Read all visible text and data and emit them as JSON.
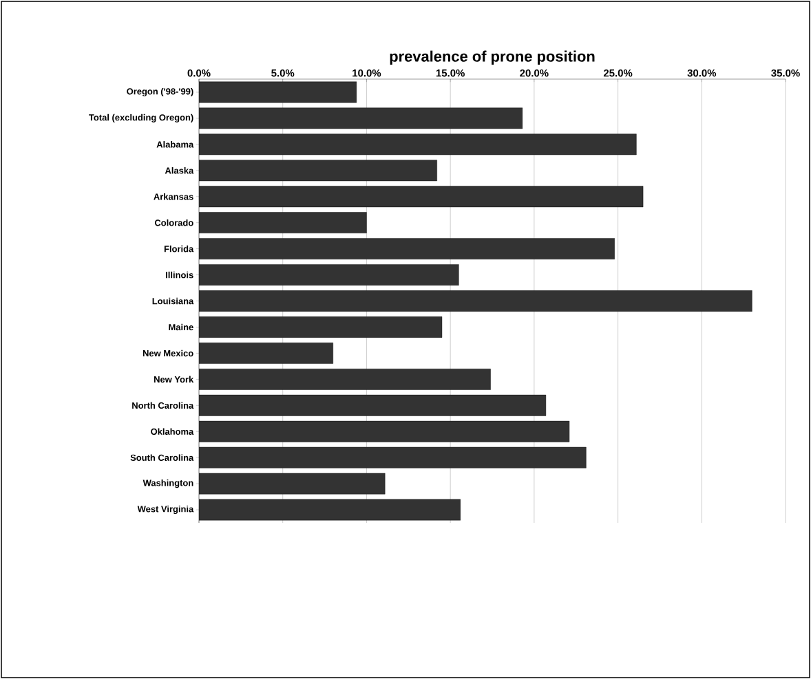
{
  "chart_data": {
    "type": "bar",
    "orientation": "horizontal",
    "xlabel": "prevalence of prone position",
    "categories": [
      "Oregon ('98-'99)",
      "Total (excluding Oregon)",
      "Alabama",
      "Alaska",
      "Arkansas",
      "Colorado",
      "Florida",
      "Illinois",
      "Louisiana",
      "Maine",
      "New Mexico",
      "New York",
      "North Carolina",
      "Oklahoma",
      "South Carolina",
      "Washington",
      "West Virginia"
    ],
    "values": [
      9.4,
      19.3,
      26.1,
      14.2,
      26.5,
      10.0,
      24.8,
      15.5,
      33.0,
      14.5,
      8.0,
      17.4,
      20.7,
      22.1,
      23.1,
      11.1,
      15.6
    ],
    "color": "#333333",
    "xlim": [
      0,
      35
    ],
    "xticks": [
      {
        "value": 0,
        "label": "0.0%"
      },
      {
        "value": 5,
        "label": "5.0%"
      },
      {
        "value": 10,
        "label": "10.0%"
      },
      {
        "value": 15,
        "label": "15.0%"
      },
      {
        "value": 20,
        "label": "20.0%"
      },
      {
        "value": 25,
        "label": "25.0%"
      },
      {
        "value": 30,
        "label": "30.0%"
      },
      {
        "value": 35,
        "label": "35.0%"
      }
    ],
    "grid": "x"
  }
}
